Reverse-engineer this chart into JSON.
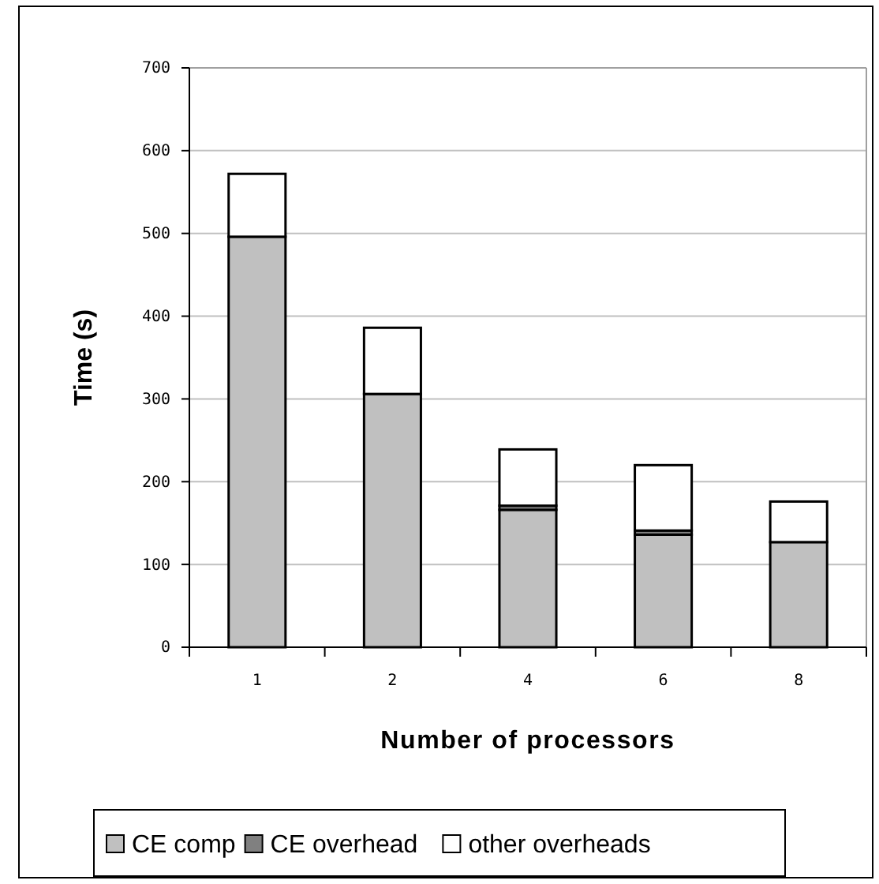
{
  "chart_data": {
    "type": "bar",
    "stacked": true,
    "xlabel": "Number of processors",
    "ylabel": "Time (s)",
    "categories": [
      "1",
      "2",
      "4",
      "6",
      "8"
    ],
    "series": [
      {
        "name": "CE comp",
        "color": "#c0c0c0",
        "values": [
          496,
          306,
          166,
          136,
          127
        ]
      },
      {
        "name": "CE overhead",
        "color": "#808080",
        "values": [
          null,
          null,
          5,
          5,
          null
        ]
      },
      {
        "name": "other overheads",
        "color": "#ffffff",
        "values": [
          76,
          80,
          68,
          79,
          49
        ]
      }
    ],
    "ylim": [
      0,
      700
    ],
    "yticks": [
      0,
      100,
      200,
      300,
      400,
      500,
      600,
      700
    ],
    "grid": "y",
    "legend": "bottom"
  }
}
